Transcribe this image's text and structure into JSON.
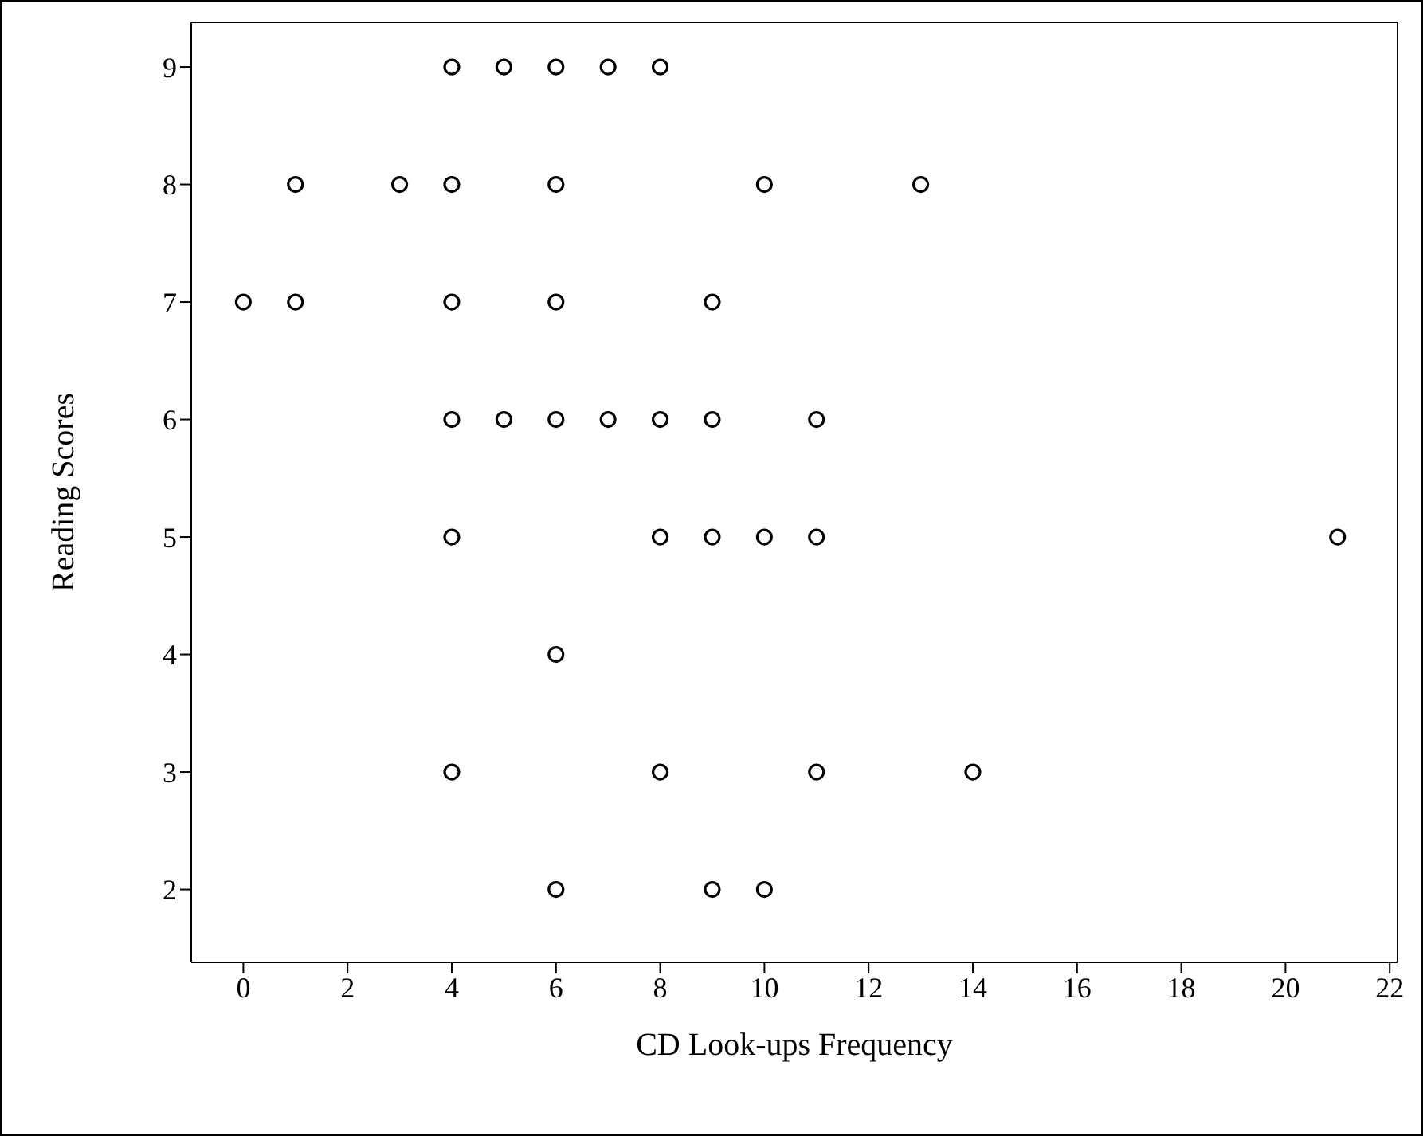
{
  "chart_data": {
    "type": "scatter",
    "xlabel": "CD Look-ups Frequency",
    "ylabel": "Reading Scores",
    "x": [
      4,
      5,
      6,
      7,
      8,
      1,
      3,
      4,
      6,
      10,
      13,
      0,
      1,
      4,
      6,
      9,
      4,
      5,
      6,
      7,
      8,
      9,
      11,
      4,
      8,
      9,
      10,
      11,
      21,
      6,
      4,
      8,
      11,
      14,
      6,
      9,
      10
    ],
    "values": [
      9,
      9,
      9,
      9,
      9,
      8,
      8,
      8,
      8,
      8,
      8,
      7,
      7,
      7,
      7,
      7,
      6,
      6,
      6,
      6,
      6,
      6,
      6,
      5,
      5,
      5,
      5,
      5,
      5,
      4,
      3,
      3,
      3,
      3,
      2,
      2,
      2
    ],
    "color": "#000000",
    "marker": "circle",
    "xlim": [
      -1,
      22.15
    ],
    "ylim": [
      1.38,
      9.38
    ],
    "xticks": [
      0,
      2,
      4,
      6,
      8,
      10,
      12,
      14,
      16,
      18,
      20,
      22
    ],
    "yticks": [
      2,
      3,
      4,
      5,
      6,
      7,
      8,
      9
    ],
    "grid": false
  }
}
